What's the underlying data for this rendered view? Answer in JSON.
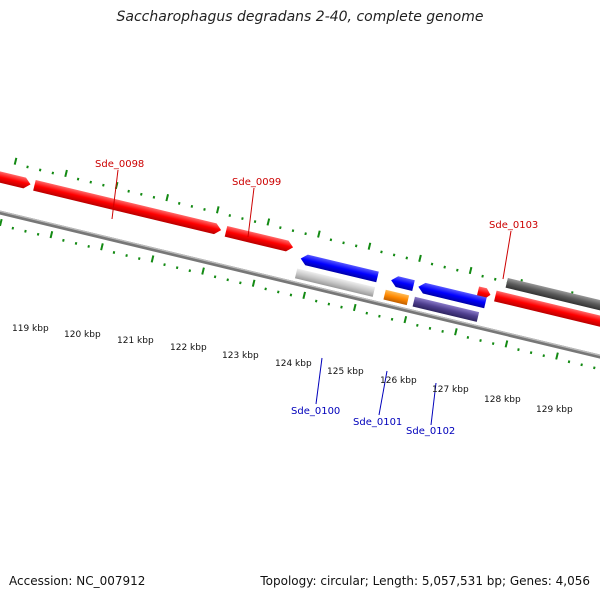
{
  "title": "Saccharophagus degradans 2-40, complete genome",
  "footer": {
    "accession": "Accession: NC_007912",
    "topology": "Topology: circular; Length: 5,057,531 bp; Genes: 4,056"
  },
  "colors": {
    "forward_gene": "#ff0000",
    "reverse_gene": "#0000ff",
    "forward_grey": "#555555",
    "reverse_grey": "#bbbbbb",
    "orange_gene": "#ff8800",
    "purple_gene": "#4f3f8f",
    "tick": "#138a13",
    "forward_label": "#cc0000",
    "reverse_label": "#0000bb"
  },
  "axis": {
    "ticks": [
      "119 kbp",
      "120 kbp",
      "121 kbp",
      "122 kbp",
      "123 kbp",
      "124 kbp",
      "125 kbp",
      "126 kbp",
      "127 kbp",
      "128 kbp",
      "129 kbp"
    ]
  },
  "forward_labels": [
    "Sde_0098",
    "Sde_0099",
    "Sde_0103"
  ],
  "reverse_labels": [
    "Sde_0100",
    "Sde_0101",
    "Sde_0102"
  ]
}
